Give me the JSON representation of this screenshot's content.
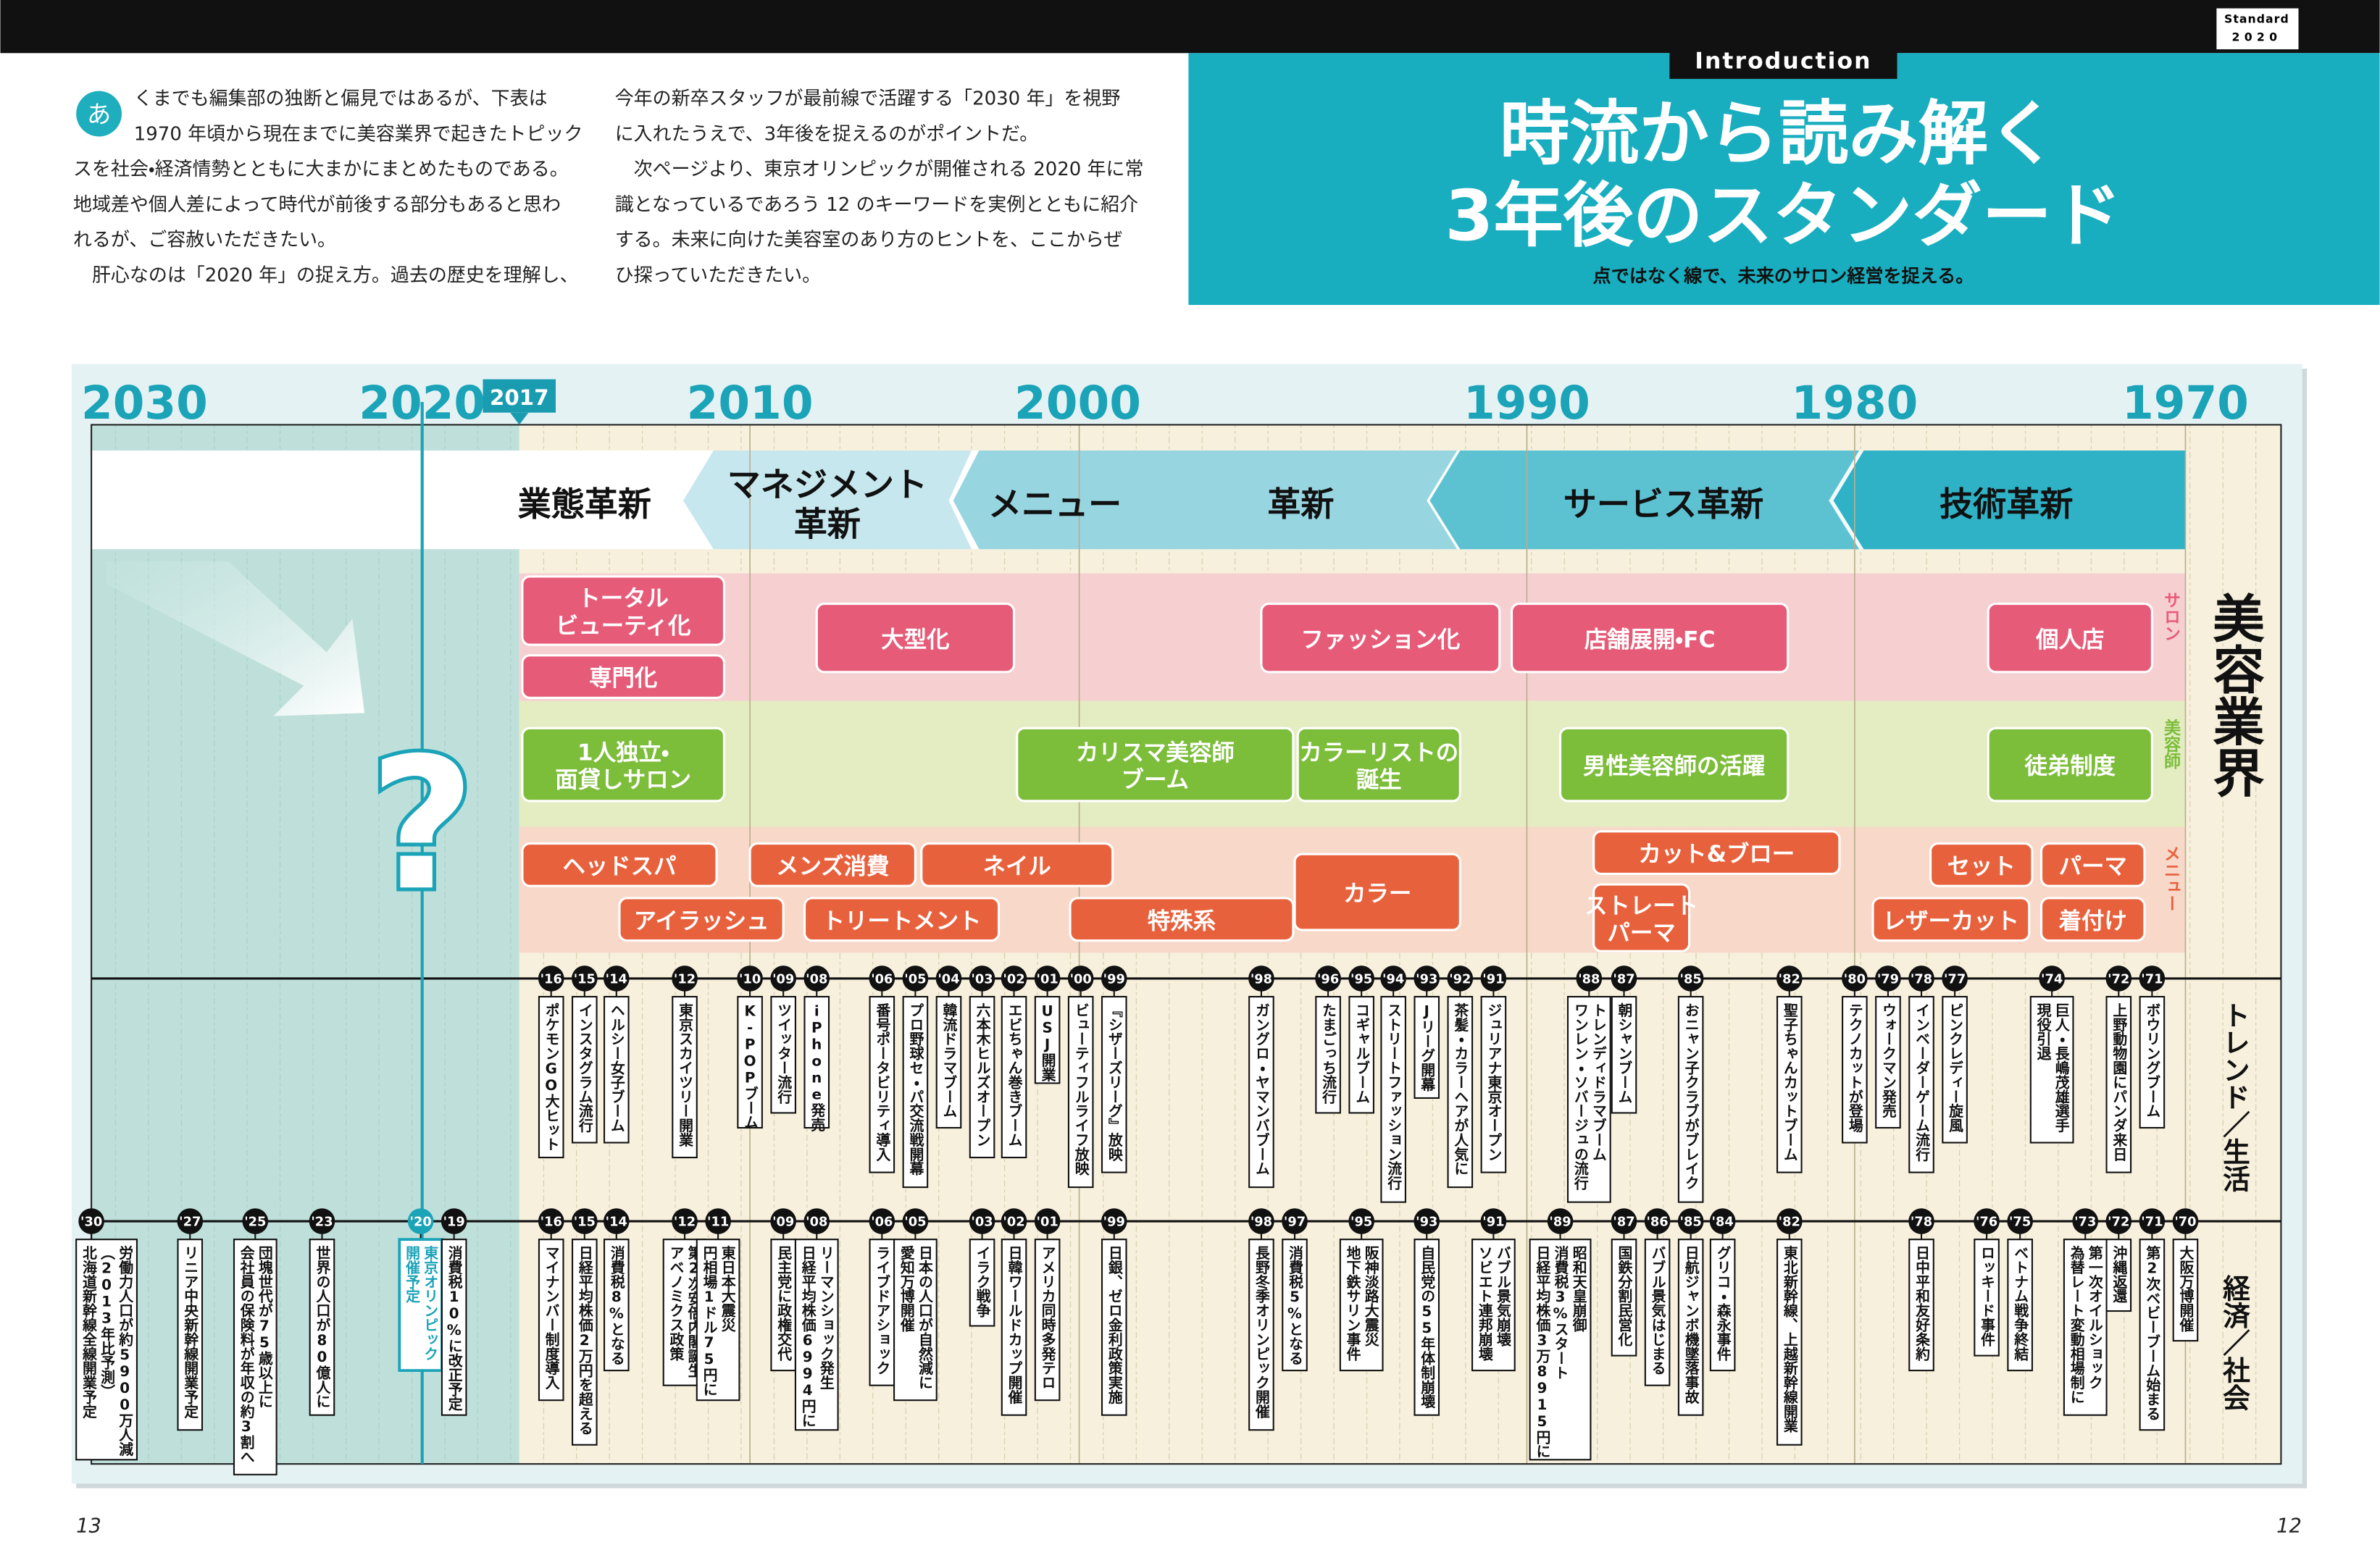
{
  "header": {
    "badge": [
      "Standard",
      "2020"
    ]
  },
  "intro": {
    "initial": "あ",
    "left": [
      "くまでも編集部の独断と偏見ではあるが、下表は",
      "1970 年頃から現在までに美容業界で起きたトピック",
      "スを社会・経済情勢とともに大まかにまとめたものである。",
      "地域差や個人差によって時代が前後する部分もあると思わ",
      "れるが、ご容赦いただきたい。",
      "　肝心なのは「2020 年」の捉え方。過去の歴史を理解し、"
    ],
    "right": [
      "今年の新卒スタッフが最前線で活躍する「2030 年」を視野",
      "に入れたうえで、3年後を捉えるのがポイントだ。",
      "　次ページより、東京オリンピックが開催される 2020 年に常",
      "識となっているであろう 12 のキーワードを実例とともに紹介",
      "する。未来に向けた美容室のあり方のヒントを、ここからぜ",
      "ひ探っていただきたい。"
    ]
  },
  "title": {
    "label": "Introduction",
    "lines": [
      "時流から読み解く",
      "3年後のスタンダード"
    ],
    "subtitle": "点ではなく線で、未来のサロン経営を捉える。"
  },
  "timeline": {
    "years": [
      "2030",
      "2020",
      "2010",
      "2000",
      "1990",
      "1980",
      "1970"
    ],
    "current": "2017",
    "question": "?",
    "phases": [
      [
        "業態革新"
      ],
      [
        "マネジメント",
        "革新"
      ],
      [
        "メニュー"
      ],
      [
        "革新"
      ],
      [
        "サービス革新"
      ],
      [
        "技術革新"
      ]
    ],
    "rows": [
      {
        "label": "サロン",
        "items": [
          [
            "トータル",
            "ビューティ化"
          ],
          [
            "専門化"
          ],
          [
            "大型化"
          ],
          [
            "ファッション化"
          ],
          [
            "店舗展開・FC"
          ],
          [
            "個人店"
          ]
        ]
      },
      {
        "label": "美容師",
        "items": [
          [
            "1人独立・",
            "面貸しサロン"
          ],
          [
            "カリスマ美容師",
            "ブーム"
          ],
          [
            "カラーリストの",
            "誕生"
          ],
          [
            "男性美容師の活躍"
          ],
          [
            "徒弟制度"
          ]
        ]
      },
      {
        "label": "メニュー",
        "items": [
          [
            "ヘッドスパ"
          ],
          [
            "アイラッシュ"
          ],
          [
            "メンズ消費"
          ],
          [
            "ネイル"
          ],
          [
            "トリートメント"
          ],
          [
            "特殊系"
          ],
          [
            "カラー"
          ],
          [
            "カット&ブロー"
          ],
          [
            "ストレート",
            "パーマ"
          ],
          [
            "セット"
          ],
          [
            "パーマ"
          ],
          [
            "レザーカット"
          ],
          [
            "着付け"
          ]
        ]
      }
    ],
    "industry": "美容業界",
    "trend_label": "トレンド／生活",
    "economy_label": "経済／社会",
    "trends": [
      {
        "year": "'16",
        "lines": [
          "ポケモンGO大ヒット"
        ]
      },
      {
        "year": "'15",
        "lines": [
          "インスタグラム流行"
        ]
      },
      {
        "year": "'14",
        "lines": [
          "ヘルシー女子ブーム"
        ]
      },
      {
        "year": "'12",
        "lines": [
          "東京スカイツリー開業"
        ]
      },
      {
        "year": "'10",
        "lines": [
          "K-POPブーム"
        ]
      },
      {
        "year": "'09",
        "lines": [
          "ツイッター流行"
        ]
      },
      {
        "year": "'08",
        "lines": [
          "iPhone発売"
        ]
      },
      {
        "year": "'06",
        "lines": [
          "番号ポータビリティ導入"
        ]
      },
      {
        "year": "'05",
        "lines": [
          "プロ野球セ・パ交流戦開幕"
        ]
      },
      {
        "year": "'04",
        "lines": [
          "韓流ドラマブーム"
        ]
      },
      {
        "year": "'03",
        "lines": [
          "六本木ヒルズオープン"
        ]
      },
      {
        "year": "'02",
        "lines": [
          "エビちゃん巻きブーム"
        ]
      },
      {
        "year": "'01",
        "lines": [
          "USJ開業"
        ]
      },
      {
        "year": "'00",
        "lines": [
          "ビューティフルライフ放映"
        ]
      },
      {
        "year": "'99",
        "lines": [
          "『シザーズリーグ』放映"
        ]
      },
      {
        "year": "'98",
        "lines": [
          "ガングロ・ヤマンバブーム"
        ]
      },
      {
        "year": "'96",
        "lines": [
          "たまごっち流行"
        ]
      },
      {
        "year": "'95",
        "lines": [
          "コギャルブーム"
        ]
      },
      {
        "year": "'94",
        "lines": [
          "ストリートファッション流行"
        ]
      },
      {
        "year": "'93",
        "lines": [
          "Jリーグ開幕"
        ]
      },
      {
        "year": "'92",
        "lines": [
          "茶髪・カラーヘアが人気に"
        ]
      },
      {
        "year": "'91",
        "lines": [
          "ジュリアナ東京オープン"
        ]
      },
      {
        "year": "'88",
        "lines": [
          "トレンディドラマブーム",
          "ワンレン・ソバージュの流行"
        ]
      },
      {
        "year": "'87",
        "lines": [
          "朝シャンブーム"
        ]
      },
      {
        "year": "'85",
        "lines": [
          "おニャン子クラブがブレイク"
        ]
      },
      {
        "year": "'82",
        "lines": [
          "聖子ちゃんカットブーム"
        ]
      },
      {
        "year": "'80",
        "lines": [
          "テクノカットが登場"
        ]
      },
      {
        "year": "'79",
        "lines": [
          "ウォークマン発売"
        ]
      },
      {
        "year": "'78",
        "lines": [
          "インベーダーゲーム流行"
        ]
      },
      {
        "year": "'77",
        "lines": [
          "ピンクレディー旋風"
        ]
      },
      {
        "year": "'74",
        "lines": [
          "巨人・長嶋茂雄選手",
          "現役引退"
        ]
      },
      {
        "year": "'72",
        "lines": [
          "上野動物園にパンダ来日"
        ]
      },
      {
        "year": "'71",
        "lines": [
          "ボウリングブーム"
        ]
      }
    ],
    "economy": [
      {
        "year": "'30",
        "lines": [
          "労働力人口が約5900万人減",
          "（2013年比予測）",
          "北海道新幹線全線開業予定"
        ]
      },
      {
        "year": "'27",
        "lines": [
          "リニア中央新幹線開業予定"
        ]
      },
      {
        "year": "'25",
        "lines": [
          "団塊世代が75歳以上に",
          "会社員の保険料が年収の約3割へ"
        ]
      },
      {
        "year": "'23",
        "lines": [
          "世界の人口が80億人に"
        ]
      },
      {
        "year": "'20",
        "lines": [
          "東京オリンピック",
          "開催予定"
        ]
      },
      {
        "year": "'19",
        "lines": [
          "消費税10%に改正予定"
        ]
      },
      {
        "year": "'16",
        "lines": [
          "マイナンバー制度導入"
        ]
      },
      {
        "year": "'15",
        "lines": [
          "日経平均株価2万円を超える"
        ]
      },
      {
        "year": "'14",
        "lines": [
          "消費税8%となる"
        ]
      },
      {
        "year": "'12",
        "lines": [
          "第2次安倍内閣誕生",
          "アベノミクス政策"
        ]
      },
      {
        "year": "'11",
        "lines": [
          "東日本大震災",
          "円相場1ドル75円に"
        ]
      },
      {
        "year": "'09",
        "lines": [
          "民主党に政権交代"
        ]
      },
      {
        "year": "'08",
        "lines": [
          "リーマンショック発生",
          "日経平均株価6994円に"
        ]
      },
      {
        "year": "'06",
        "lines": [
          "ライブドアショック"
        ]
      },
      {
        "year": "'05",
        "lines": [
          "日本の人口が自然減に",
          "愛知万博開催"
        ]
      },
      {
        "year": "'03",
        "lines": [
          "イラク戦争"
        ]
      },
      {
        "year": "'02",
        "lines": [
          "日韓ワールドカップ開催"
        ]
      },
      {
        "year": "'01",
        "lines": [
          "アメリカ同時多発テロ"
        ]
      },
      {
        "year": "'99",
        "lines": [
          "日銀、ゼロ金利政策実施"
        ]
      },
      {
        "year": "'98",
        "lines": [
          "長野冬季オリンピック開催"
        ]
      },
      {
        "year": "'97",
        "lines": [
          "消費税5%となる"
        ]
      },
      {
        "year": "'95",
        "lines": [
          "阪神淡路大震災",
          "地下鉄サリン事件"
        ]
      },
      {
        "year": "'93",
        "lines": [
          "自民党の55年体制崩壊"
        ]
      },
      {
        "year": "'91",
        "lines": [
          "バブル景気崩壊",
          "ソビエト連邦崩壊"
        ]
      },
      {
        "year": "'89",
        "lines": [
          "昭和天皇崩御",
          "消費税3%スタート",
          "日経平均株価3万8915円に"
        ]
      },
      {
        "year": "'87",
        "lines": [
          "国鉄分割民営化"
        ]
      },
      {
        "year": "'86",
        "lines": [
          "バブル景気はじまる"
        ]
      },
      {
        "year": "'85",
        "lines": [
          "日航ジャンボ機墜落事故"
        ]
      },
      {
        "year": "'84",
        "lines": [
          "グリコ・森永事件"
        ]
      },
      {
        "year": "'82",
        "lines": [
          "東北新幹線、上越新幹線開業"
        ]
      },
      {
        "year": "'78",
        "lines": [
          "日中平和友好条約"
        ]
      },
      {
        "year": "'76",
        "lines": [
          "ロッキード事件"
        ]
      },
      {
        "year": "'75",
        "lines": [
          "ベトナム戦争終結"
        ]
      },
      {
        "year": "'73",
        "lines": [
          "第一次オイルショック",
          "為替レート変動相場制に"
        ]
      },
      {
        "year": "'72",
        "lines": [
          "沖縄返還"
        ]
      },
      {
        "year": "'71",
        "lines": [
          "第2次ベビーブーム始まる"
        ]
      },
      {
        "year": "'70",
        "lines": [
          "大阪万博開催"
        ]
      }
    ]
  },
  "pages": [
    "13",
    "12"
  ]
}
